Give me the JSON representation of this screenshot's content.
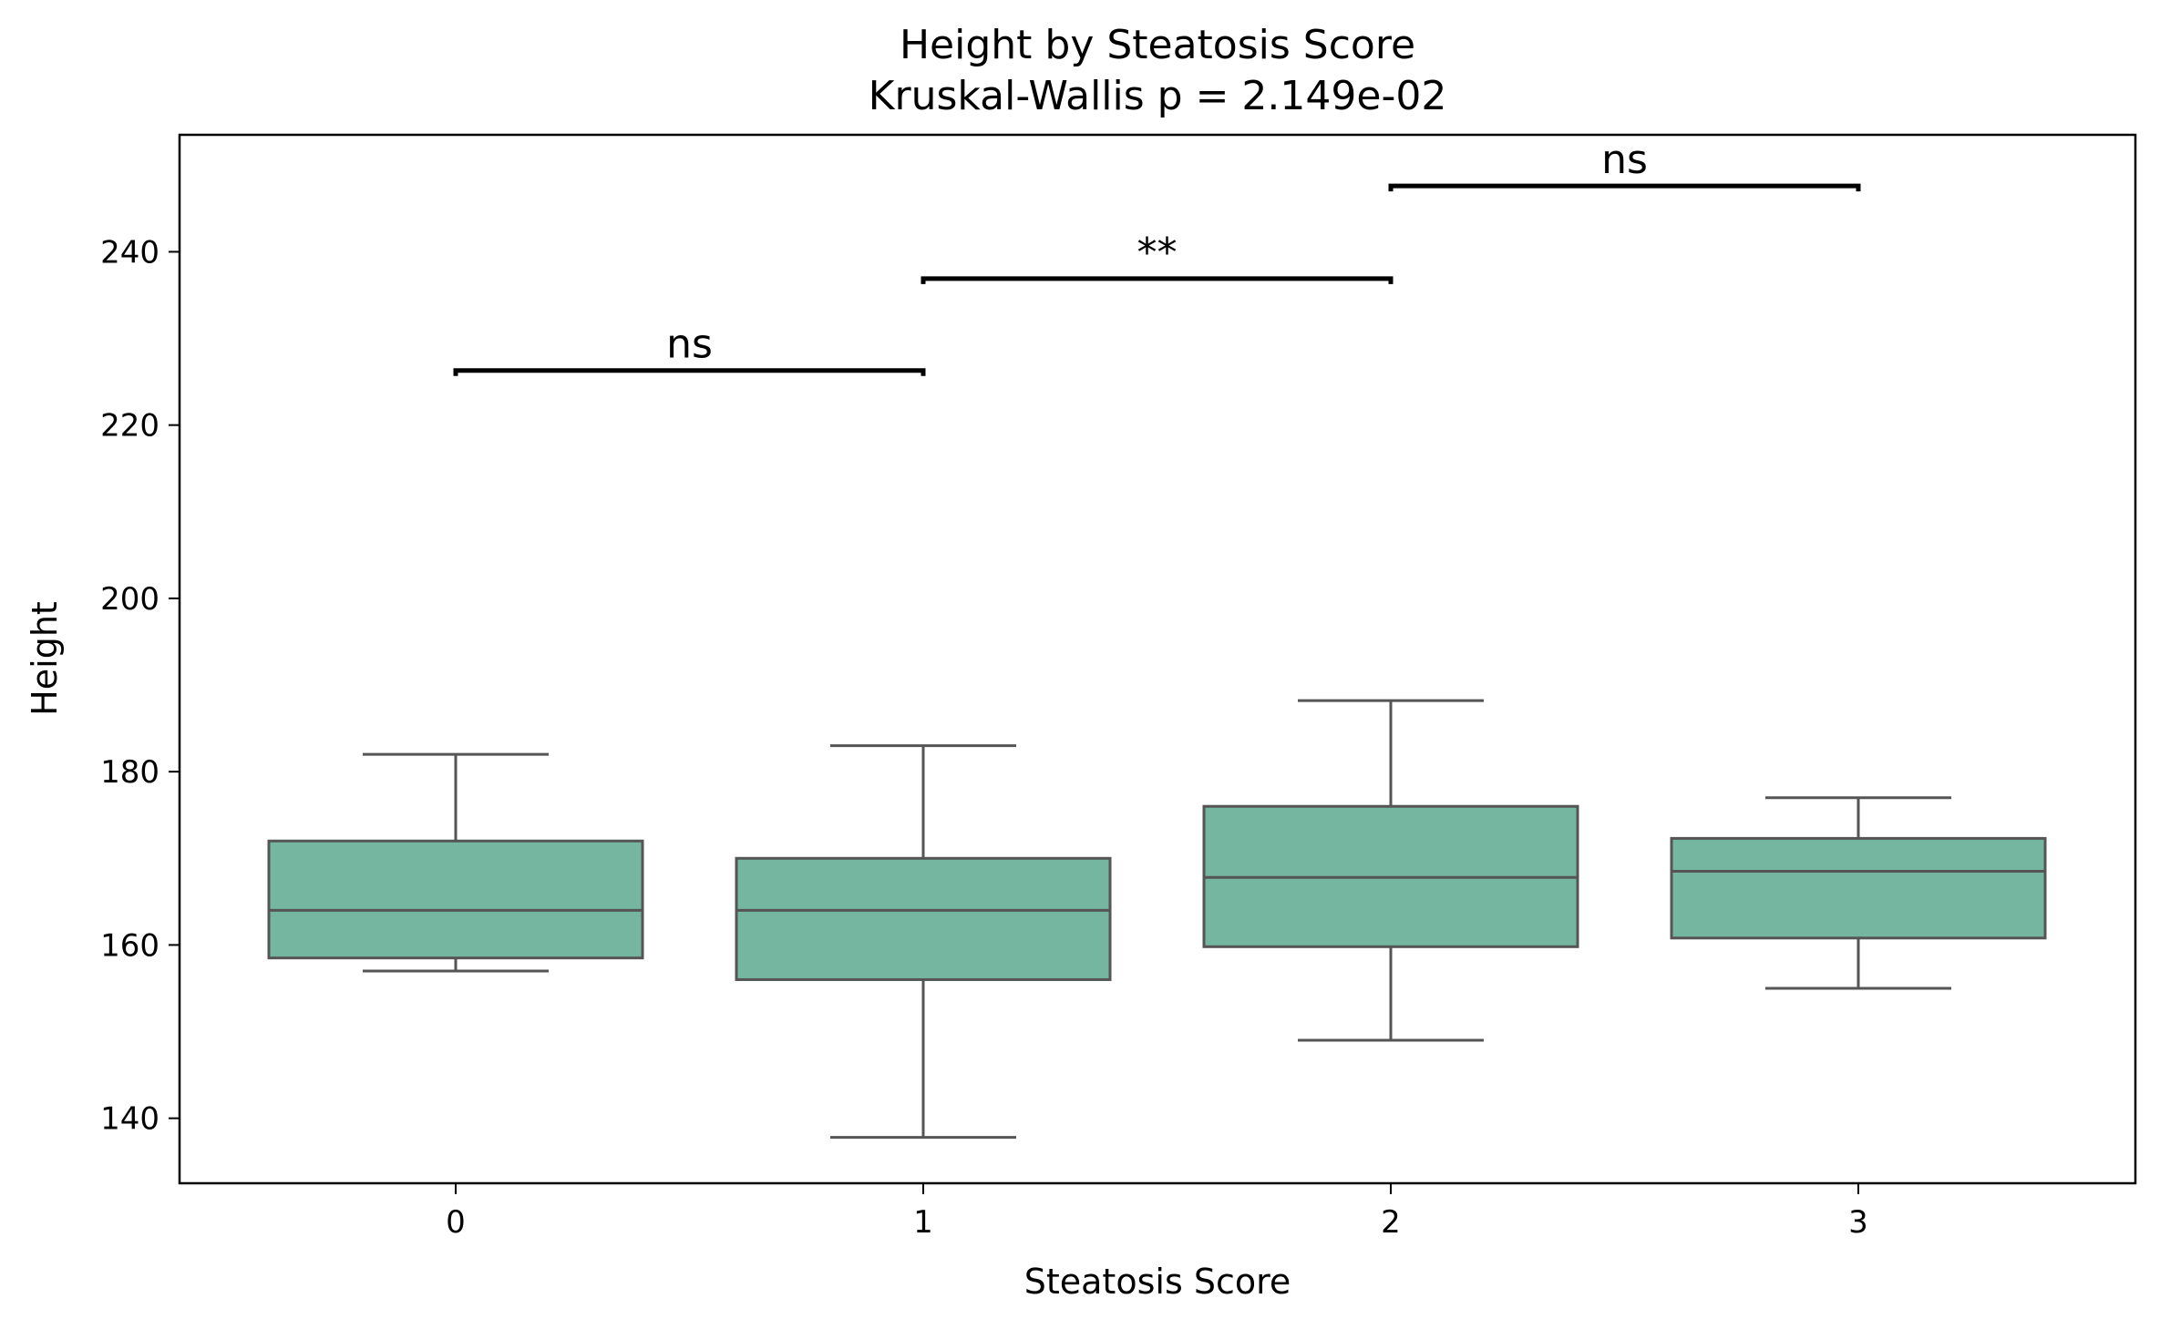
{
  "chart_data": {
    "type": "box",
    "title": "Height by Steatosis Score",
    "subtitle": "Kruskal-Wallis p = 2.149e-02",
    "xlabel": "Steatosis Score",
    "ylabel": "Height",
    "categories": [
      "0",
      "1",
      "2",
      "3"
    ],
    "ylim": [
      132.5,
      253.5
    ],
    "yticks": [
      140,
      160,
      180,
      200,
      220,
      240
    ],
    "grid": false,
    "legend": "none",
    "box_color": "#74b69f",
    "line_color": "#555555",
    "boxes": [
      {
        "category": "0",
        "whisker_low": 157,
        "q1": 158.5,
        "median": 164,
        "q3": 172,
        "whisker_high": 182
      },
      {
        "category": "1",
        "whisker_low": 137.8,
        "q1": 156,
        "median": 164,
        "q3": 170,
        "whisker_high": 183
      },
      {
        "category": "2",
        "whisker_low": 149,
        "q1": 159.8,
        "median": 167.8,
        "q3": 176,
        "whisker_high": 188.2
      },
      {
        "category": "3",
        "whisker_low": 155,
        "q1": 160.8,
        "median": 168.5,
        "q3": 172.3,
        "whisker_high": 177
      }
    ],
    "annotations": [
      {
        "from": "0",
        "to": "1",
        "y": 226.3,
        "label": "ns"
      },
      {
        "from": "1",
        "to": "2",
        "y": 236.9,
        "label": "**"
      },
      {
        "from": "2",
        "to": "3",
        "y": 247.6,
        "label": "ns"
      }
    ]
  }
}
